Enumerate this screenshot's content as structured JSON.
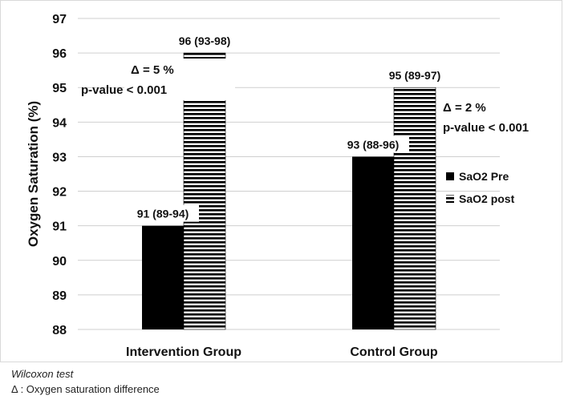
{
  "chart_data": {
    "type": "bar",
    "title": "",
    "xlabel": "",
    "ylabel": "Oxygen Saturation (%)",
    "ylim": [
      88,
      97
    ],
    "yticks": [
      88,
      89,
      90,
      91,
      92,
      93,
      94,
      95,
      96,
      97
    ],
    "grid": true,
    "legend_position": "right",
    "categories": [
      "Intervention Group",
      "Control Group"
    ],
    "series": [
      {
        "name": "SaO2 Pre",
        "values": [
          91,
          93
        ],
        "labels": [
          "91 (89-94)",
          "93 (88-96)"
        ],
        "fill": "solid",
        "color": "#000000"
      },
      {
        "name": "SaO2 post",
        "values": [
          96,
          95
        ],
        "labels": [
          "96 (93-98)",
          "95 (89-97)"
        ],
        "fill": "horizontal-stripes",
        "color": "#000000"
      }
    ],
    "annotations": [
      {
        "category": "Intervention Group",
        "lines": [
          "Δ = 5 %",
          "p-value < 0.001"
        ]
      },
      {
        "category": "Control Group",
        "lines": [
          "Δ = 2 %",
          "p-value < 0.001"
        ]
      }
    ]
  },
  "footnotes": {
    "test": "Wilcoxon test",
    "delta": "Δ : Oxygen saturation difference"
  }
}
